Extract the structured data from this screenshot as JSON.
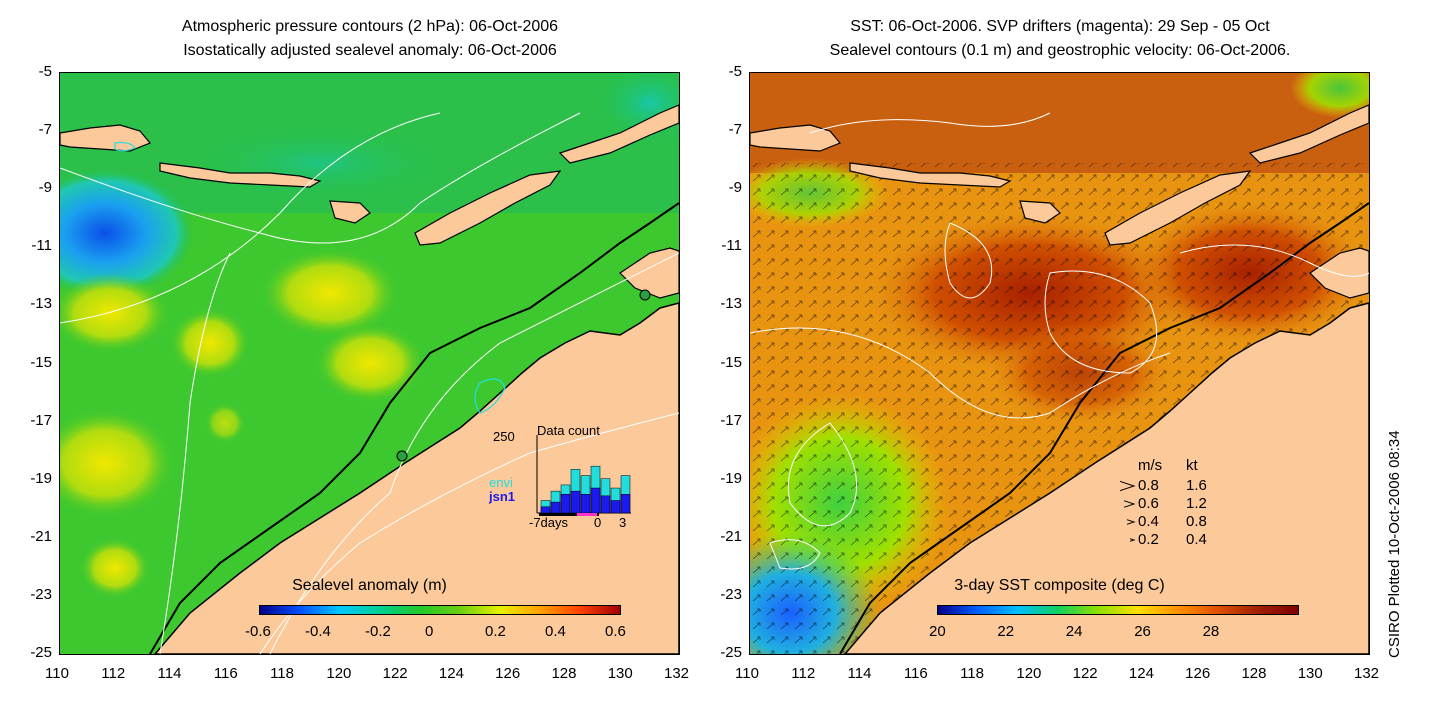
{
  "left_panel": {
    "title_line1": "Atmospheric pressure contours (2 hPa): 06-Oct-2006",
    "title_line2": "Isostatically adjusted sealevel anomaly: 06-Oct-2006",
    "colorbar_label": "Sealevel anomaly (m)",
    "colorbar_ticks": [
      "-0.6",
      "-0.4",
      "-0.2",
      "0",
      "0.2",
      "0.4",
      "0.6"
    ],
    "inset": {
      "title": "Data count",
      "ymax": "250",
      "legend": [
        {
          "name": "envi",
          "color": "#22dddd"
        },
        {
          "name": "jsn1",
          "color": "#1a1aee"
        }
      ],
      "xlabels": [
        "-7days",
        "0",
        "3"
      ],
      "bars_envi": [
        40,
        70,
        90,
        140,
        120,
        150,
        110,
        80,
        120
      ],
      "bars_jsn1": [
        20,
        35,
        60,
        70,
        60,
        80,
        55,
        40,
        60
      ]
    }
  },
  "right_panel": {
    "title_line1": "SST: 06-Oct-2006. SVP drifters (magenta): 29 Sep - 05 Oct",
    "title_line2": "Sealevel contours (0.1 m) and geostrophic velocity: 06-Oct-2006.",
    "colorbar_label": "3-day SST composite (deg C)",
    "colorbar_ticks": [
      "20",
      "22",
      "24",
      "26",
      "28"
    ],
    "velocity_legend": {
      "header_ms": "m/s",
      "header_kt": "kt",
      "rows": [
        {
          "ms": "0.8",
          "kt": "1.6"
        },
        {
          "ms": "0.6",
          "kt": "1.2"
        },
        {
          "ms": "0.4",
          "kt": "0.8"
        },
        {
          "ms": "0.2",
          "kt": "0.4"
        }
      ]
    }
  },
  "axes": {
    "y_ticks": [
      "-5",
      "-7",
      "-9",
      "-11",
      "-13",
      "-15",
      "-17",
      "-19",
      "-21",
      "-23",
      "-25"
    ],
    "x_ticks": [
      "110",
      "112",
      "114",
      "116",
      "118",
      "120",
      "122",
      "124",
      "126",
      "128",
      "130",
      "132"
    ]
  },
  "credit": "CSIRO Plotted 10-Oct-2006 08:34",
  "colors": {
    "land": "#fbc99a",
    "coast": "#000000",
    "sla_scale": [
      "#00008c",
      "#0050ff",
      "#00c8ff",
      "#00d090",
      "#22c82a",
      "#6ad010",
      "#e8f000",
      "#ffa000",
      "#ff4000",
      "#a00000"
    ],
    "sst_scale": [
      "#00008c",
      "#0060ff",
      "#00c0ff",
      "#10d060",
      "#90e000",
      "#ffe000",
      "#ff9000",
      "#e05000",
      "#a02000",
      "#800000"
    ]
  }
}
